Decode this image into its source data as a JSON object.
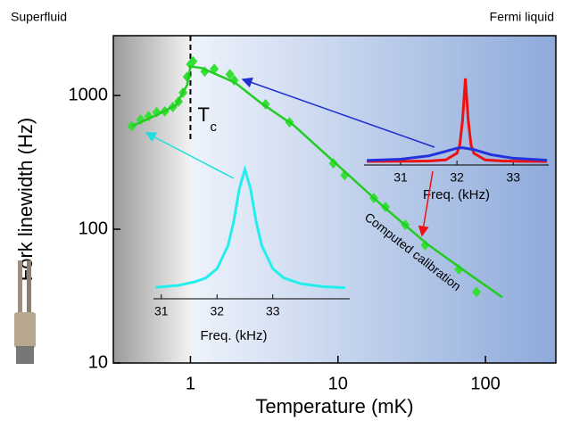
{
  "chart_data": [
    {
      "type": "line",
      "x_label": "Temperature (mK)",
      "y_label": "Fork linewidth (Hz)",
      "xscale": "log",
      "yscale": "log",
      "xlim": [
        0.3,
        300
      ],
      "ylim": [
        10,
        2800
      ],
      "xticks": [
        1,
        10,
        100
      ],
      "yticks": [
        10,
        100,
        1000
      ],
      "region_labels": [
        "Superfluid",
        "Fermi liquid"
      ],
      "transition": {
        "x": 1,
        "label": "T",
        "subscript": "c"
      },
      "annotation": "Computed calibration",
      "series": [
        {
          "style": "markers",
          "color": "#33e033",
          "x": [
            0.4,
            0.46,
            0.52,
            0.59,
            0.67,
            0.76,
            0.83,
            0.89,
            0.95,
            1.0,
            1.04,
            1.25,
            1.45,
            1.85,
            1.98,
            3.23,
            4.7,
            9.3,
            11.1,
            17.5,
            21,
            28.6,
            39,
            66,
            87
          ],
          "values": [
            590,
            660,
            700,
            750,
            760,
            820,
            900,
            1050,
            1380,
            1710,
            1800,
            1510,
            1580,
            1440,
            1300,
            860,
            630,
            311,
            254,
            171,
            147,
            108,
            76,
            50,
            34
          ]
        },
        {
          "style": "line",
          "color": "#22cc22",
          "x": [
            0.4,
            0.6,
            0.8,
            0.95,
            1.0,
            1.2,
            2,
            3,
            5,
            10,
            20,
            40,
            70,
            130
          ],
          "values": [
            590,
            720,
            850,
            1200,
            1650,
            1600,
            1250,
            880,
            600,
            300,
            150,
            78,
            50,
            31
          ]
        }
      ]
    },
    {
      "type": "line",
      "x_label": "Freq. (kHz)",
      "xlim": [
        30.86,
        34.38
      ],
      "ylim": [
        0,
        1
      ],
      "xticks": [
        31,
        32,
        33
      ],
      "series": [
        {
          "style": "line",
          "color": "#22eeee",
          "x": [
            30.9,
            31.3,
            31.6,
            31.8,
            32.0,
            32.2,
            32.3,
            32.4,
            32.5,
            32.6,
            32.7,
            32.8,
            33.0,
            33.2,
            33.5,
            33.9,
            34.3
          ],
          "values": [
            0.089,
            0.103,
            0.131,
            0.161,
            0.233,
            0.414,
            0.6,
            0.852,
            1.0,
            0.852,
            0.6,
            0.414,
            0.233,
            0.161,
            0.117,
            0.094,
            0.085
          ]
        }
      ]
    },
    {
      "type": "line",
      "x_label": "Freq. (kHz)",
      "xlim": [
        30.35,
        33.63
      ],
      "ylim": [
        0,
        1
      ],
      "xticks": [
        31,
        32,
        33
      ],
      "series": [
        {
          "style": "line",
          "color": "#ee1111",
          "x": [
            30.4,
            31.0,
            31.5,
            31.8,
            32.0,
            32.05,
            32.1,
            32.15,
            32.2,
            32.25,
            32.3,
            32.5,
            32.8,
            33.2,
            33.6
          ],
          "values": [
            0.041,
            0.042,
            0.046,
            0.059,
            0.136,
            0.232,
            0.52,
            1.0,
            0.52,
            0.232,
            0.136,
            0.059,
            0.046,
            0.042,
            0.041
          ]
        },
        {
          "style": "line",
          "color": "#2233dd",
          "x": [
            30.4,
            31.0,
            31.5,
            31.8,
            32.0,
            32.1,
            32.3,
            32.6,
            33.0,
            33.6
          ],
          "values": [
            0.053,
            0.067,
            0.106,
            0.158,
            0.194,
            0.2,
            0.178,
            0.12,
            0.078,
            0.056
          ]
        }
      ]
    }
  ]
}
